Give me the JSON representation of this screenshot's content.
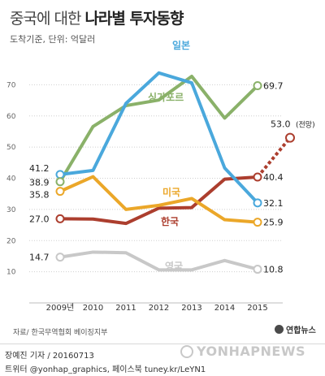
{
  "title": {
    "part1": "중국에 대한",
    "part2": "나라별 투자동향"
  },
  "subtitle": "도착기준, 단위: 억달러",
  "source": "자료/ 한국무역협회 베이징지부",
  "byline": "장예진 기자 / 20160713",
  "twitter": "트위터 @yonhap_graphics, 페이스북 tuney.kr/LeYN1",
  "agency": "연합뉴스",
  "watermark": "YONHAPNEWS",
  "chart_data": {
    "type": "line",
    "categories": [
      "2009년",
      "2010",
      "2011",
      "2012",
      "2013",
      "2014",
      "2015"
    ],
    "ylim": [
      0,
      80
    ],
    "yticks": [
      "10",
      "20",
      "30",
      "40",
      "50",
      "60",
      "70"
    ],
    "grid": true,
    "series": [
      {
        "name": "일본",
        "color": "#4aa8dc",
        "values": [
          41.2,
          42.5,
          64.0,
          73.8,
          70.6,
          43.3,
          32.1
        ],
        "start_label": "41.2",
        "end_label": "32.1"
      },
      {
        "name": "싱가포르",
        "color": "#8ab169",
        "values": [
          38.9,
          56.6,
          63.3,
          65.1,
          72.7,
          59.3,
          69.7
        ],
        "start_label": "38.9",
        "end_label": "69.7"
      },
      {
        "name": "미국",
        "color": "#eba729",
        "values": [
          35.8,
          40.5,
          30.0,
          31.3,
          33.5,
          26.7,
          25.9
        ],
        "start_label": "35.8",
        "end_label": "25.9"
      },
      {
        "name": "한국",
        "color": "#ac3e2e",
        "values": [
          27.0,
          26.9,
          25.5,
          30.4,
          30.6,
          39.7,
          40.4
        ],
        "start_label": "27.0",
        "end_label": "40.4"
      },
      {
        "name": "영국",
        "color": "#c8c8c8",
        "values": [
          14.7,
          16.3,
          16.1,
          10.6,
          10.6,
          13.6,
          10.8
        ],
        "start_label": "14.7",
        "end_label": "10.8"
      }
    ],
    "forecast": {
      "series": "한국",
      "from": 40.4,
      "value": 53.0,
      "label": "53.0",
      "note": "(전망)"
    }
  }
}
